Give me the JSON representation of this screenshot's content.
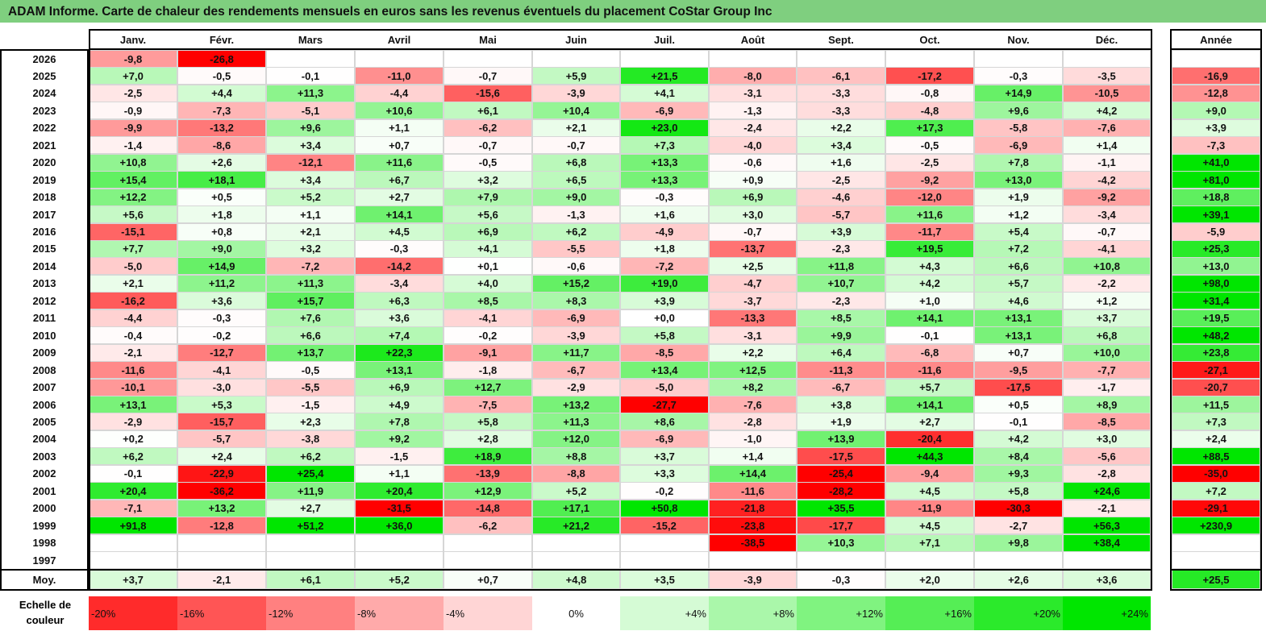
{
  "title": "ADAM Informe. Carte de chaleur des rendements mensuels en euros sans les revenus éventuels du placement CoStar Group Inc",
  "chart_data": {
    "type": "heatmap",
    "title": "ADAM Informe. Carte de chaleur des rendements mensuels en euros sans les revenus éventuels du placement CoStar Group Inc",
    "columns": [
      "Janv.",
      "Févr.",
      "Mars",
      "Avril",
      "Mai",
      "Juin",
      "Juil.",
      "Août",
      "Sept.",
      "Oct.",
      "Nov.",
      "Déc."
    ],
    "year_column_label": "Année",
    "rows": [
      {
        "year": "2026",
        "months": [
          "-9,8",
          "-26,8",
          "",
          "",
          "",
          "",
          "",
          "",
          "",
          "",
          "",
          ""
        ],
        "total": ""
      },
      {
        "year": "2025",
        "months": [
          "+7,0",
          "-0,5",
          "-0,1",
          "-11,0",
          "-0,7",
          "+5,9",
          "+21,5",
          "-8,0",
          "-6,1",
          "-17,2",
          "-0,3",
          "-3,5"
        ],
        "total": "-16,9"
      },
      {
        "year": "2024",
        "months": [
          "-2,5",
          "+4,4",
          "+11,3",
          "-4,4",
          "-15,6",
          "-3,9",
          "+4,1",
          "-3,1",
          "-3,3",
          "-0,8",
          "+14,9",
          "-10,5"
        ],
        "total": "-12,8"
      },
      {
        "year": "2023",
        "months": [
          "-0,9",
          "-7,3",
          "-5,1",
          "+10,6",
          "+6,1",
          "+10,4",
          "-6,9",
          "-1,3",
          "-3,3",
          "-4,8",
          "+9,6",
          "+4,2"
        ],
        "total": "+9,0"
      },
      {
        "year": "2022",
        "months": [
          "-9,9",
          "-13,2",
          "+9,6",
          "+1,1",
          "-6,2",
          "+2,1",
          "+23,0",
          "-2,4",
          "+2,2",
          "+17,3",
          "-5,8",
          "-7,6"
        ],
        "total": "+3,9"
      },
      {
        "year": "2021",
        "months": [
          "-1,4",
          "-8,6",
          "+3,4",
          "+0,7",
          "-0,7",
          "-0,7",
          "+7,3",
          "-4,0",
          "+3,4",
          "-0,5",
          "-6,9",
          "+1,4"
        ],
        "total": "-7,3"
      },
      {
        "year": "2020",
        "months": [
          "+10,8",
          "+2,6",
          "-12,1",
          "+11,6",
          "-0,5",
          "+6,8",
          "+13,3",
          "-0,6",
          "+1,6",
          "-2,5",
          "+7,8",
          "-1,1"
        ],
        "total": "+41,0"
      },
      {
        "year": "2019",
        "months": [
          "+15,4",
          "+18,1",
          "+3,4",
          "+6,7",
          "+3,2",
          "+6,5",
          "+13,3",
          "+0,9",
          "-2,5",
          "-9,2",
          "+13,0",
          "-4,2"
        ],
        "total": "+81,0"
      },
      {
        "year": "2018",
        "months": [
          "+12,2",
          "+0,5",
          "+5,2",
          "+2,7",
          "+7,9",
          "+9,0",
          "-0,3",
          "+6,9",
          "-4,6",
          "-12,0",
          "+1,9",
          "-9,2"
        ],
        "total": "+18,8"
      },
      {
        "year": "2017",
        "months": [
          "+5,6",
          "+1,8",
          "+1,1",
          "+14,1",
          "+5,6",
          "-1,3",
          "+1,6",
          "+3,0",
          "-5,7",
          "+11,6",
          "+1,2",
          "-3,4"
        ],
        "total": "+39,1"
      },
      {
        "year": "2016",
        "months": [
          "-15,1",
          "+0,8",
          "+2,1",
          "+4,5",
          "+6,9",
          "+6,2",
          "-4,9",
          "-0,7",
          "+3,9",
          "-11,7",
          "+5,4",
          "-0,7"
        ],
        "total": "-5,9"
      },
      {
        "year": "2015",
        "months": [
          "+7,7",
          "+9,0",
          "+3,2",
          "-0,3",
          "+4,1",
          "-5,5",
          "+1,8",
          "-13,7",
          "-2,3",
          "+19,5",
          "+7,2",
          "-4,1"
        ],
        "total": "+25,3"
      },
      {
        "year": "2014",
        "months": [
          "-5,0",
          "+14,9",
          "-7,2",
          "-14,2",
          "+0,1",
          "-0,6",
          "-7,2",
          "+2,5",
          "+11,8",
          "+4,3",
          "+6,6",
          "+10,8"
        ],
        "total": "+13,0"
      },
      {
        "year": "2013",
        "months": [
          "+2,1",
          "+11,2",
          "+11,3",
          "-3,4",
          "+4,0",
          "+15,2",
          "+19,0",
          "-4,7",
          "+10,7",
          "+4,2",
          "+5,7",
          "-2,2"
        ],
        "total": "+98,0"
      },
      {
        "year": "2012",
        "months": [
          "-16,2",
          "+3,6",
          "+15,7",
          "+6,3",
          "+8,5",
          "+8,3",
          "+3,9",
          "-3,7",
          "-2,3",
          "+1,0",
          "+4,6",
          "+1,2"
        ],
        "total": "+31,4"
      },
      {
        "year": "2011",
        "months": [
          "-4,4",
          "-0,3",
          "+7,6",
          "+3,6",
          "-4,1",
          "-6,9",
          "+0,0",
          "-13,3",
          "+8,5",
          "+14,1",
          "+13,1",
          "+3,7"
        ],
        "total": "+19,5"
      },
      {
        "year": "2010",
        "months": [
          "-0,4",
          "-0,2",
          "+6,6",
          "+7,4",
          "-0,2",
          "-3,9",
          "+5,8",
          "-3,1",
          "+9,9",
          "-0,1",
          "+13,1",
          "+6,8"
        ],
        "total": "+48,2"
      },
      {
        "year": "2009",
        "months": [
          "-2,1",
          "-12,7",
          "+13,7",
          "+22,3",
          "-9,1",
          "+11,7",
          "-8,5",
          "+2,2",
          "+6,4",
          "-6,8",
          "+0,7",
          "+10,0"
        ],
        "total": "+23,8"
      },
      {
        "year": "2008",
        "months": [
          "-11,6",
          "-4,1",
          "-0,5",
          "+13,1",
          "-1,8",
          "-6,7",
          "+13,4",
          "+12,5",
          "-11,3",
          "-11,6",
          "-9,5",
          "-7,7"
        ],
        "total": "-27,1"
      },
      {
        "year": "2007",
        "months": [
          "-10,1",
          "-3,0",
          "-5,5",
          "+6,9",
          "+12,7",
          "-2,9",
          "-5,0",
          "+8,2",
          "-6,7",
          "+5,7",
          "-17,5",
          "-1,7"
        ],
        "total": "-20,7"
      },
      {
        "year": "2006",
        "months": [
          "+13,1",
          "+5,3",
          "-1,5",
          "+4,9",
          "-7,5",
          "+13,2",
          "-27,7",
          "-7,6",
          "+3,8",
          "+14,1",
          "+0,5",
          "+8,9"
        ],
        "total": "+11,5"
      },
      {
        "year": "2005",
        "months": [
          "-2,9",
          "-15,7",
          "+2,3",
          "+7,8",
          "+5,8",
          "+11,3",
          "+8,6",
          "-2,8",
          "+1,9",
          "+2,7",
          "-0,1",
          "-8,5"
        ],
        "total": "+7,3"
      },
      {
        "year": "2004",
        "months": [
          "+0,2",
          "-5,7",
          "-3,8",
          "+9,2",
          "+2,8",
          "+12,0",
          "-6,9",
          "-1,0",
          "+13,9",
          "-20,4",
          "+4,2",
          "+3,0"
        ],
        "total": "+2,4"
      },
      {
        "year": "2003",
        "months": [
          "+6,2",
          "+2,4",
          "+6,2",
          "-1,5",
          "+18,9",
          "+8,8",
          "+3,7",
          "+1,4",
          "-17,5",
          "+44,3",
          "+8,4",
          "-5,6"
        ],
        "total": "+88,5"
      },
      {
        "year": "2002",
        "months": [
          "-0,1",
          "-22,9",
          "+25,4",
          "+1,1",
          "-13,9",
          "-8,8",
          "+3,3",
          "+14,4",
          "-25,4",
          "-9,4",
          "+9,3",
          "-2,8"
        ],
        "total": "-35,0"
      },
      {
        "year": "2001",
        "months": [
          "+20,4",
          "-36,2",
          "+11,9",
          "+20,4",
          "+12,9",
          "+5,2",
          "-0,2",
          "-11,6",
          "-28,2",
          "+4,5",
          "+5,8",
          "+24,6"
        ],
        "total": "+7,2"
      },
      {
        "year": "2000",
        "months": [
          "-7,1",
          "+13,2",
          "+2,7",
          "-31,5",
          "-14,8",
          "+17,1",
          "+50,8",
          "-21,8",
          "+35,5",
          "-11,9",
          "-30,3",
          "-2,1"
        ],
        "total": "-29,1"
      },
      {
        "year": "1999",
        "months": [
          "+91,8",
          "-12,8",
          "+51,2",
          "+36,0",
          "-6,2",
          "+21,2",
          "-15,2",
          "-23,8",
          "-17,7",
          "+4,5",
          "-2,7",
          "+56,3"
        ],
        "total": "+230,9"
      },
      {
        "year": "1998",
        "months": [
          "",
          "",
          "",
          "",
          "",
          "",
          "",
          "-38,5",
          "+10,3",
          "+7,1",
          "+9,8",
          "+38,4"
        ],
        "total": ""
      },
      {
        "year": "1997",
        "months": [
          "",
          "",
          "",
          "",
          "",
          "",
          "",
          "",
          "",
          "",
          "",
          ""
        ],
        "total": ""
      }
    ],
    "average": {
      "label": "Moy.",
      "months": [
        "+3,7",
        "-2,1",
        "+6,1",
        "+5,2",
        "+0,7",
        "+4,8",
        "+3,5",
        "-3,9",
        "-0,3",
        "+2,0",
        "+2,6",
        "+3,6"
      ],
      "total": "+25,5"
    },
    "color_scale": {
      "label": "Echelle de couleur",
      "values": [
        -20,
        -16,
        -12,
        -8,
        -4,
        0,
        4,
        8,
        12,
        16,
        20,
        24
      ],
      "labels": [
        "-20%",
        "-16%",
        "-12%",
        "-8%",
        "-4%",
        "0%",
        "+4%",
        "+8%",
        "+12%",
        "+16%",
        "+20%",
        "+24%"
      ]
    }
  },
  "colors": {
    "title_bar": "#7fcf7f",
    "negative_max": "#ff0000",
    "positive_max": "#00e600",
    "neutral": "#ffffff"
  }
}
